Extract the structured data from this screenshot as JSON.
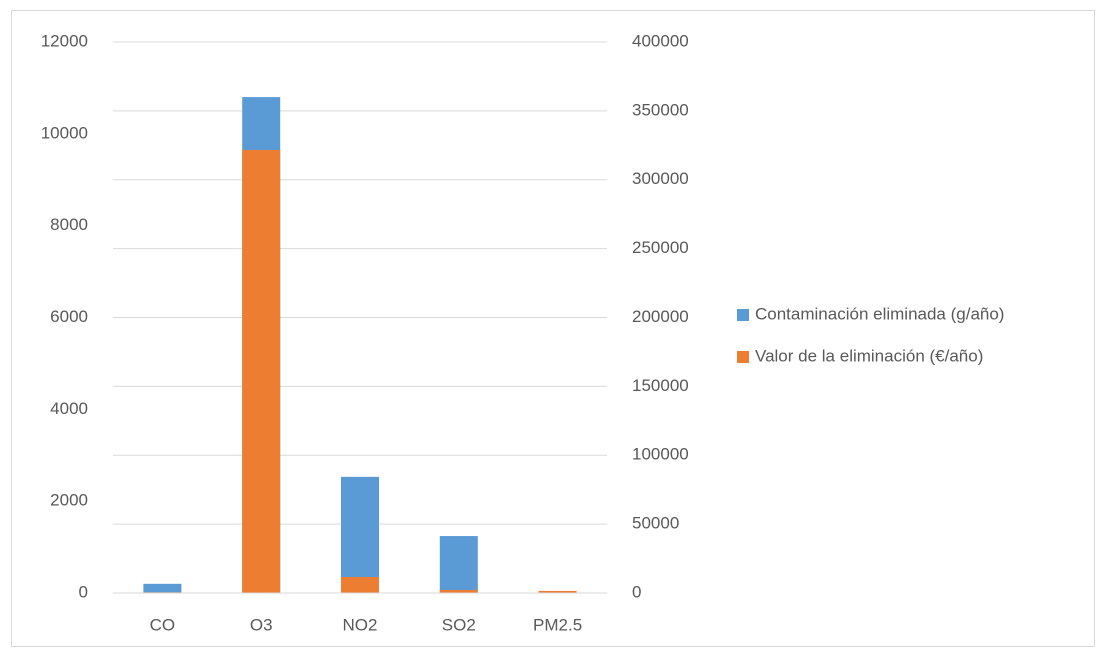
{
  "chart_data": {
    "type": "bar",
    "categories": [
      "CO",
      "O3",
      "NO2",
      "SO2",
      "PM2.5"
    ],
    "series": [
      {
        "name": "Contaminación eliminada (g/año)",
        "color": "#5b9bd5",
        "values": [
          200,
          10800,
          2530,
          1240,
          20
        ]
      },
      {
        "name": "Valor de la eliminación (€/año)",
        "color": "#ed7d31",
        "axis": "y2",
        "values": [
          500,
          321600,
          11600,
          2200,
          1500
        ]
      }
    ],
    "ylim": [
      0,
      12000
    ],
    "yticks": [
      0,
      2000,
      4000,
      6000,
      8000,
      10000,
      12000
    ],
    "y2lim": [
      0,
      400000
    ],
    "y2ticks": [
      0,
      50000,
      100000,
      150000,
      200000,
      250000,
      300000,
      350000,
      400000
    ],
    "grid": true,
    "legend": "right"
  }
}
